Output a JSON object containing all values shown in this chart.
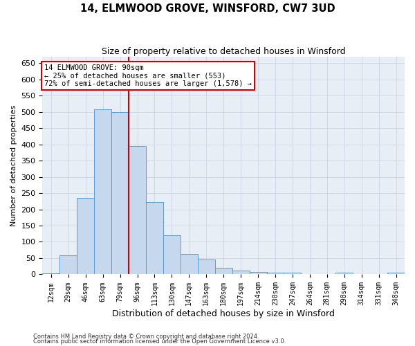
{
  "title": "14, ELMWOOD GROVE, WINSFORD, CW7 3UD",
  "subtitle": "Size of property relative to detached houses in Winsford",
  "xlabel": "Distribution of detached houses by size in Winsford",
  "ylabel": "Number of detached properties",
  "footnote1": "Contains HM Land Registry data © Crown copyright and database right 2024.",
  "footnote2": "Contains public sector information licensed under the Open Government Licence v3.0.",
  "bar_color": "#c5d8ed",
  "bar_edge_color": "#5b9bd5",
  "categories": [
    "12sqm",
    "29sqm",
    "46sqm",
    "63sqm",
    "79sqm",
    "96sqm",
    "113sqm",
    "130sqm",
    "147sqm",
    "163sqm",
    "180sqm",
    "197sqm",
    "214sqm",
    "230sqm",
    "247sqm",
    "264sqm",
    "281sqm",
    "298sqm",
    "314sqm",
    "331sqm",
    "348sqm"
  ],
  "values": [
    3,
    58,
    235,
    507,
    500,
    395,
    222,
    120,
    62,
    46,
    20,
    11,
    8,
    6,
    5,
    0,
    0,
    5,
    0,
    0,
    5
  ],
  "vline_x": 4.5,
  "vline_color": "#cc0000",
  "annotation_text": "14 ELMWOOD GROVE: 90sqm\n← 25% of detached houses are smaller (553)\n72% of semi-detached houses are larger (1,578) →",
  "annotation_box_color": "#ffffff",
  "annotation_box_edge": "#cc0000",
  "ylim": [
    0,
    670
  ],
  "yticks": [
    0,
    50,
    100,
    150,
    200,
    250,
    300,
    350,
    400,
    450,
    500,
    550,
    600,
    650
  ],
  "grid_color": "#d0d8e8",
  "bg_color": "#e8eef5"
}
